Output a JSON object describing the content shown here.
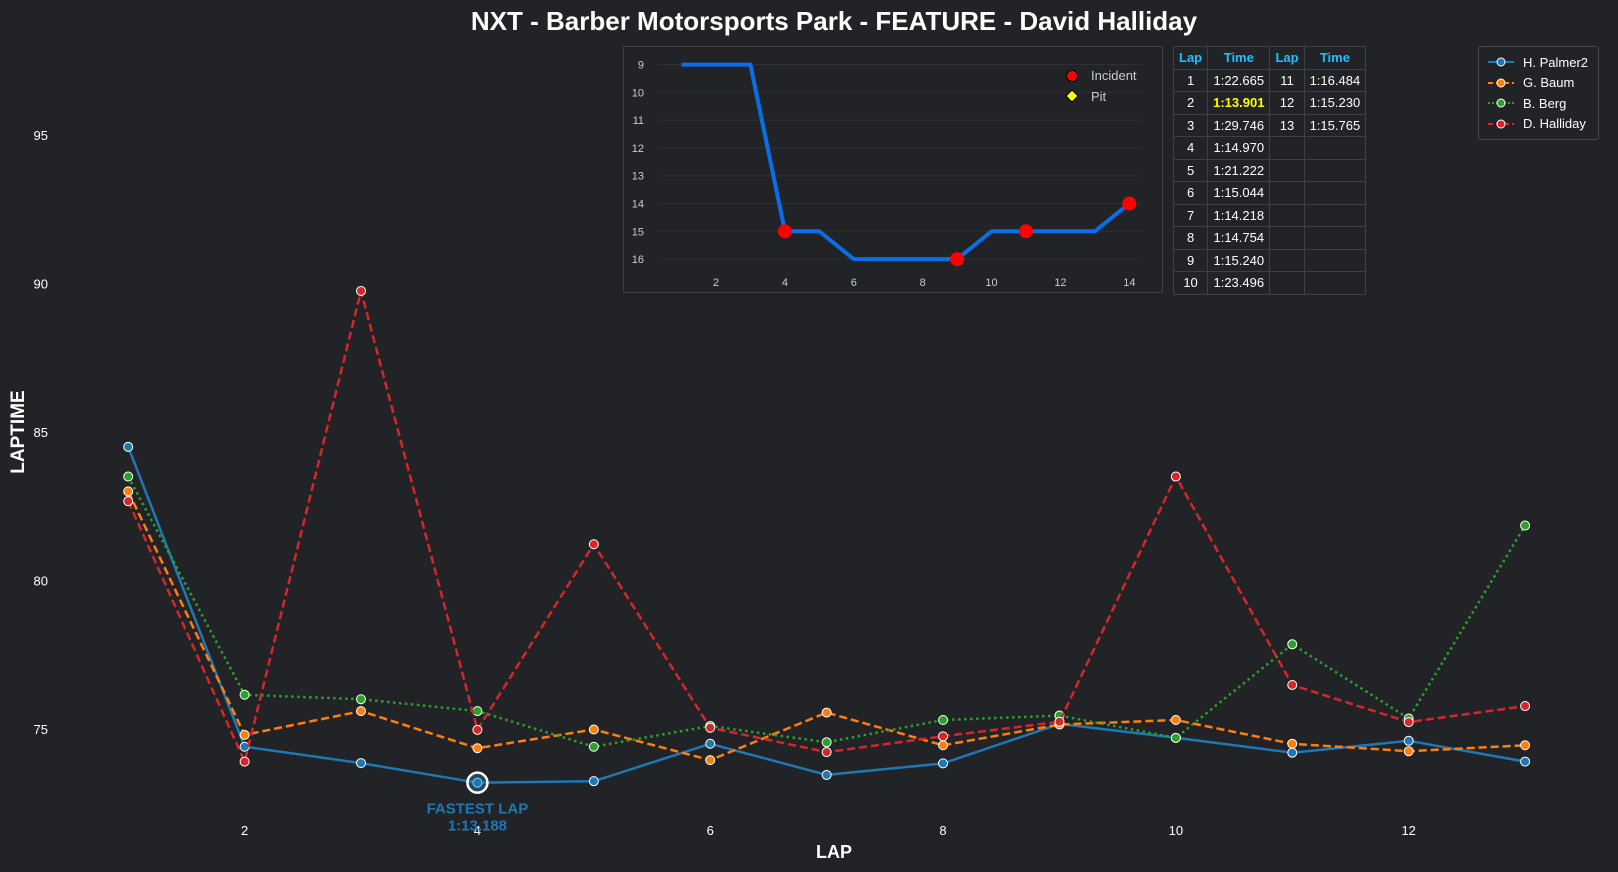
{
  "chart_data": [
    {
      "type": "line",
      "title": "NXT - Barber Motorsports Park - FEATURE - David Halliday",
      "xlabel": "LAP",
      "ylabel": "LAPTIME",
      "x_ticks": [
        2,
        4,
        6,
        8,
        10,
        12
      ],
      "y_ticks": [
        75,
        80,
        85,
        90,
        95
      ],
      "xlim": [
        0.5,
        13.3
      ],
      "ylim": [
        72.0,
        98.0
      ],
      "legend_position": "top-right",
      "grid": false,
      "x": [
        1,
        2,
        3,
        4,
        5,
        6,
        7,
        8,
        9,
        10,
        11,
        12,
        13
      ],
      "series": [
        {
          "name": "H. Palmer2",
          "color": "#1f77b4",
          "dash": "solid",
          "values": [
            84.5,
            74.4,
            73.85,
            73.19,
            73.24,
            74.5,
            73.45,
            73.84,
            75.17,
            74.7,
            74.2,
            74.6,
            73.9
          ]
        },
        {
          "name": "G. Baum",
          "color": "#ff7f0e",
          "dash": "dashed",
          "values": [
            83.0,
            74.8,
            75.6,
            74.35,
            74.98,
            73.95,
            75.55,
            74.45,
            75.15,
            75.3,
            74.5,
            74.25,
            74.45
          ]
        },
        {
          "name": "B. Berg",
          "color": "#2ca02c",
          "dash": "dotted",
          "values": [
            83.5,
            76.15,
            76.0,
            75.6,
            74.4,
            75.1,
            74.55,
            75.3,
            75.45,
            74.7,
            77.85,
            75.35,
            81.85
          ]
        },
        {
          "name": "D. Halliday",
          "color": "#d62728",
          "dash": "dashed",
          "values": [
            82.67,
            73.9,
            89.75,
            74.97,
            81.22,
            75.04,
            74.22,
            74.75,
            75.24,
            83.5,
            76.48,
            75.23,
            75.77
          ]
        }
      ],
      "annotation": {
        "label": "FASTEST LAP",
        "value": "1:13.188",
        "x": 4,
        "y": 73.19,
        "color": "#1f77b4"
      }
    },
    {
      "type": "line",
      "x_ticks": [
        2,
        4,
        6,
        8,
        10,
        12,
        14
      ],
      "y_ticks": [
        9,
        10,
        11,
        12,
        13,
        14,
        15,
        16
      ],
      "xlim": [
        0.2,
        14.6
      ],
      "ylim": [
        16.5,
        8.8
      ],
      "y_inverted": true,
      "x": [
        1,
        2,
        3,
        4,
        5,
        6,
        7,
        8,
        9,
        10,
        11,
        12,
        13,
        14
      ],
      "positions": [
        9,
        9,
        9,
        15,
        15,
        16,
        16,
        16,
        16,
        15,
        15,
        15,
        15,
        14
      ],
      "line_color": "#0a6ee8",
      "incident_laps": [
        4,
        9,
        11,
        14
      ],
      "pit_laps": [],
      "legend": [
        {
          "name": "Incident",
          "color": "#ff0000"
        },
        {
          "name": "Pit",
          "color": "#ffff00"
        }
      ]
    }
  ],
  "lap_table": {
    "headers": [
      "Lap",
      "Time",
      "Lap",
      "Time"
    ],
    "rows": [
      [
        "1",
        "1:22.665",
        "11",
        "1:16.484"
      ],
      [
        "2",
        "1:13.901",
        "12",
        "1:15.230"
      ],
      [
        "3",
        "1:29.746",
        "13",
        "1:15.765"
      ],
      [
        "4",
        "1:14.970",
        "",
        ""
      ],
      [
        "5",
        "1:21.222",
        "",
        ""
      ],
      [
        "6",
        "1:15.044",
        "",
        ""
      ],
      [
        "7",
        "1:14.218",
        "",
        ""
      ],
      [
        "8",
        "1:14.754",
        "",
        ""
      ],
      [
        "9",
        "1:15.240",
        "",
        ""
      ],
      [
        "10",
        "1:23.496",
        "",
        ""
      ]
    ],
    "highlight": {
      "row": 1,
      "col": 1,
      "color": "#ffff00"
    }
  },
  "colors": {
    "background": "#212327",
    "text": "#ffffff",
    "table_header": "#19c3ff",
    "border": "#3d4046"
  }
}
